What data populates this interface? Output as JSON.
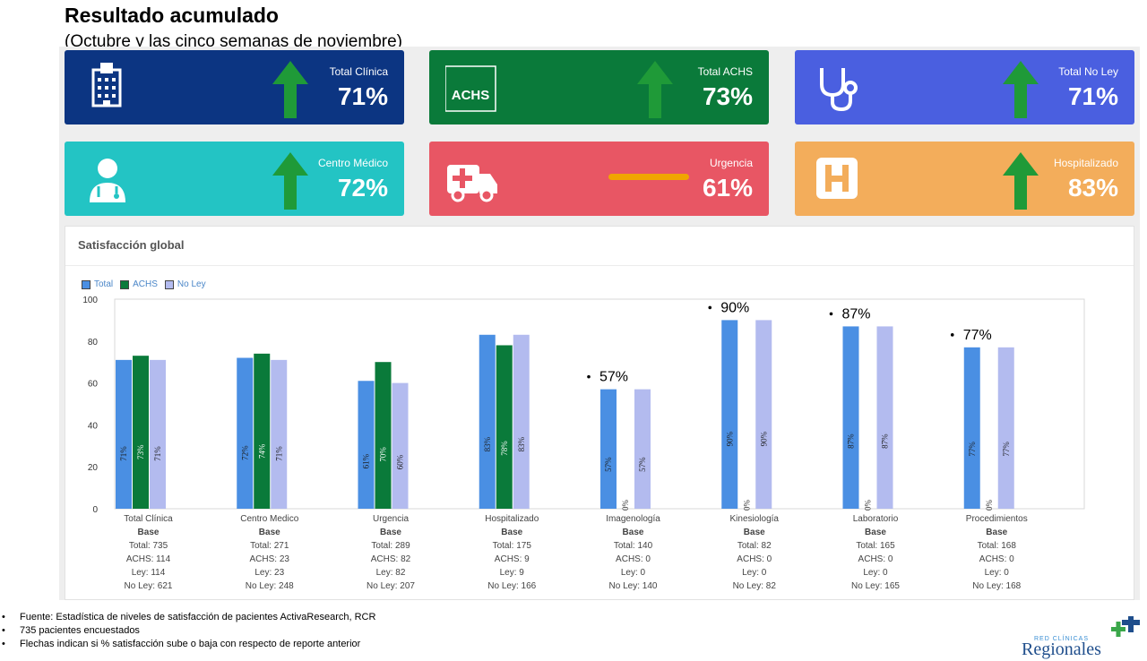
{
  "header": {
    "title": "Resultado acumulado",
    "subtitle": "(Octubre y las cinco semanas de noviembre)"
  },
  "cards": [
    {
      "label": "Total Clínica",
      "value": "71%",
      "color": "#0c3582",
      "icon": "building-icon",
      "trend": "up"
    },
    {
      "label": "Total ACHS",
      "value": "73%",
      "color": "#0a7a3a",
      "icon": "achs-logo-icon",
      "icon_text": "ACHS",
      "trend": "up"
    },
    {
      "label": "Total No Ley",
      "value": "71%",
      "color": "#4a5fe0",
      "icon": "stethoscope-icon",
      "trend": "up"
    },
    {
      "label": "Centro Médico",
      "value": "72%",
      "color": "#23c4c4",
      "icon": "doctor-icon",
      "trend": "up"
    },
    {
      "label": "Urgencia",
      "value": "61%",
      "color": "#e85664",
      "icon": "ambulance-icon",
      "trend": "flat"
    },
    {
      "label": "Hospitalizado",
      "value": "83%",
      "color": "#f3ad5b",
      "icon": "hospital-h-icon",
      "trend": "up"
    }
  ],
  "trend_colors": {
    "up": "#1f9a38",
    "flat": "#f0a500"
  },
  "panel": {
    "title": "Satisfacción global"
  },
  "legend": [
    {
      "label": "Total",
      "color": "#4a8fe3"
    },
    {
      "label": "ACHS",
      "color": "#0a7a3a"
    },
    {
      "label": "No Ley",
      "color": "#b3bbef"
    }
  ],
  "chart_data": {
    "type": "bar",
    "categories": [
      "Total Clínica",
      "Centro Medico",
      "Urgencia",
      "Hospitalizado",
      "Imagenología",
      "Kinesiología",
      "Laboratorio",
      "Procedimientos"
    ],
    "series": [
      {
        "name": "Total",
        "values": [
          71,
          72,
          61,
          83,
          57,
          90,
          87,
          77
        ],
        "labels": [
          "71%",
          "72%",
          "61%",
          "83%",
          "57%",
          "90%",
          "87%",
          "77%"
        ]
      },
      {
        "name": "ACHS",
        "values": [
          73,
          74,
          70,
          78,
          0,
          0,
          0,
          0
        ],
        "labels": [
          "73%",
          "74%",
          "70%",
          "78%",
          "0%",
          "0%",
          "0%",
          "0%"
        ]
      },
      {
        "name": "No Ley",
        "values": [
          71,
          71,
          60,
          83,
          57,
          90,
          87,
          77
        ],
        "labels": [
          "71%",
          "71%",
          "60%",
          "83%",
          "57%",
          "90%",
          "87%",
          "77%"
        ]
      }
    ],
    "ylim": [
      0,
      100
    ],
    "yticks": [
      0,
      20,
      40,
      60,
      80,
      100
    ],
    "grid": false,
    "legend_position": "top-left",
    "callouts": [
      {
        "category": "Imagenología",
        "text": "57%"
      },
      {
        "category": "Kinesiología",
        "text": "90%"
      },
      {
        "category": "Laboratorio",
        "text": "87%"
      },
      {
        "category": "Procedimientos",
        "text": "77%"
      }
    ],
    "base": [
      {
        "title": "Base",
        "total": "Total: 735",
        "achs": "ACHS: 114",
        "ley": "Ley: 114",
        "noley": "No Ley: 621"
      },
      {
        "title": "Base",
        "total": "Total: 271",
        "achs": "ACHS: 23",
        "ley": "Ley: 23",
        "noley": "No Ley: 248"
      },
      {
        "title": "Base",
        "total": "Total: 289",
        "achs": "ACHS: 82",
        "ley": "Ley: 82",
        "noley": "No Ley: 207"
      },
      {
        "title": "Base",
        "total": "Total: 175",
        "achs": "ACHS: 9",
        "ley": "Ley: 9",
        "noley": "No Ley: 166"
      },
      {
        "title": "Base",
        "total": "Total: 140",
        "achs": "ACHS: 0",
        "ley": "Ley: 0",
        "noley": "No Ley: 140"
      },
      {
        "title": "Base",
        "total": "Total: 82",
        "achs": "ACHS: 0",
        "ley": "Ley: 0",
        "noley": "No Ley: 82"
      },
      {
        "title": "Base",
        "total": "Total: 165",
        "achs": "ACHS: 0",
        "ley": "Ley: 0",
        "noley": "No Ley: 165"
      },
      {
        "title": "Base",
        "total": "Total: 168",
        "achs": "ACHS: 0",
        "ley": "Ley: 0",
        "noley": "No Ley: 168"
      }
    ]
  },
  "footnotes": [
    "Fuente: Estadística de niveles de satisfacción de pacientes ActivaResearch, RCR",
    "735  pacientes encuestados",
    "Flechas indican si % satisfacción sube o baja con respecto de reporte anterior"
  ],
  "footnote_bullet": "•",
  "logo": {
    "small": "RED CLÍNICAS",
    "big": "Regionales",
    "icon": "plus-cross-logo-icon"
  }
}
